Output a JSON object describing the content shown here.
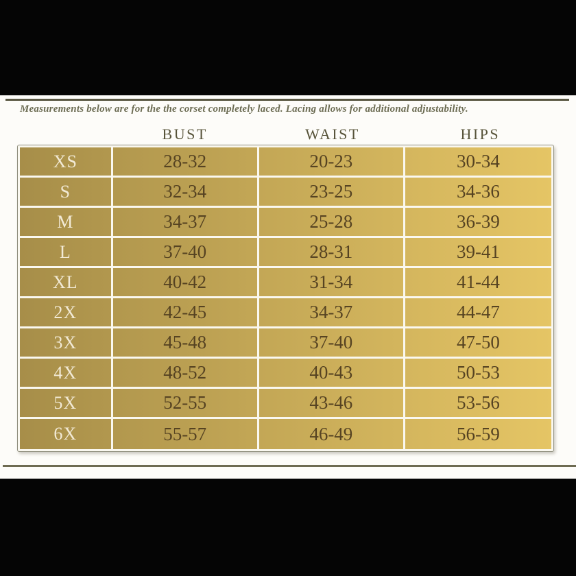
{
  "page": {
    "note": "Measurements below are for the the corset completely laced. Lacing allows for additional adjustability."
  },
  "chart_data": {
    "type": "table",
    "columns": [
      "BUST",
      "WAIST",
      "HIPS"
    ],
    "row_header_column": "size",
    "rows": [
      {
        "size": "XS",
        "bust": "28-32",
        "waist": "20-23",
        "hips": "30-34"
      },
      {
        "size": "S",
        "bust": "32-34",
        "waist": "23-25",
        "hips": "34-36"
      },
      {
        "size": "M",
        "bust": "34-37",
        "waist": "25-28",
        "hips": "36-39"
      },
      {
        "size": "L",
        "bust": "37-40",
        "waist": "28-31",
        "hips": "39-41"
      },
      {
        "size": "XL",
        "bust": "40-42",
        "waist": "31-34",
        "hips": "41-44"
      },
      {
        "size": "2X",
        "bust": "42-45",
        "waist": "34-37",
        "hips": "44-47"
      },
      {
        "size": "3X",
        "bust": "45-48",
        "waist": "37-40",
        "hips": "47-50"
      },
      {
        "size": "4X",
        "bust": "48-52",
        "waist": "40-43",
        "hips": "50-53"
      },
      {
        "size": "5X",
        "bust": "52-55",
        "waist": "43-46",
        "hips": "53-56"
      },
      {
        "size": "6X",
        "bust": "55-57",
        "waist": "46-49",
        "hips": "56-59"
      }
    ]
  },
  "colors": {
    "page_bg": "#fdfcf9",
    "letterbox": "#050505",
    "gold_left": "#a78e49",
    "gold_right": "#e5c565",
    "frame_bg": "#faf8f0",
    "frame_border": "#908f7f",
    "value_text": "#564322",
    "size_label_text": "#f2ead6",
    "header_text": "#575339",
    "note_text": "#6c6c53",
    "rule_top": "#5b5944",
    "rule_bottom": "#6e6b52"
  }
}
